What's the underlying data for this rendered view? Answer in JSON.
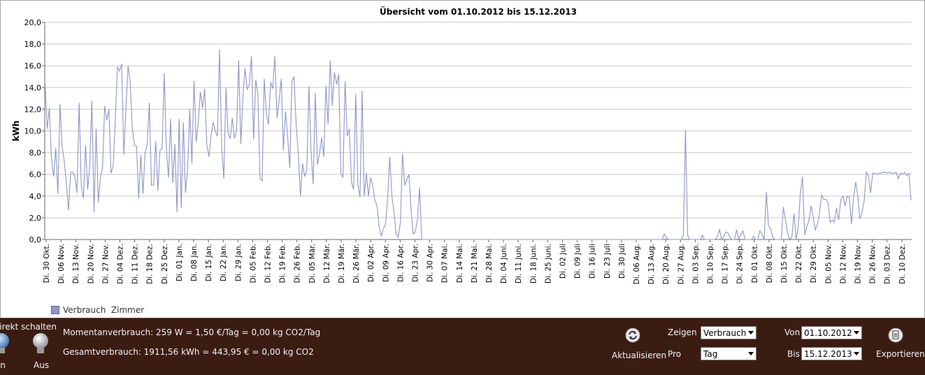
{
  "chart_data": {
    "type": "line",
    "title": "Übersicht vom 01.10.2012 bis 15.12.2013",
    "ylabel": "kWh",
    "xlabel": "",
    "ylim": [
      0,
      20
    ],
    "yticks": [
      "0,0",
      "2,0",
      "4,0",
      "6,0",
      "8,0",
      "10,0",
      "12,0",
      "14,0",
      "16,0",
      "18,0",
      "20,0"
    ],
    "xticks": [
      "Di. 30 Okt.",
      "Di. 06 Nov.",
      "Di. 13 Nov.",
      "Di. 20 Nov.",
      "Di. 27 Nov.",
      "Di. 04 Dez.",
      "Di. 11 Dez.",
      "Di. 18 Dez.",
      "Di. 25 Dez.",
      "Di. 01 Jan.",
      "Di. 08 Jan.",
      "Di. 15 Jan.",
      "Di. 22 Jan.",
      "Di. 29 Jan.",
      "Di. 05 Feb.",
      "Di. 12 Feb.",
      "Di. 19 Feb.",
      "Di. 26 Feb.",
      "Di. 05 Mär.",
      "Di. 12 Mär.",
      "Di. 19 Mär.",
      "Di. 26 Mär.",
      "Di. 02 Apr.",
      "Di. 09 Apr.",
      "Di. 16 Apr.",
      "Di. 23 Apr.",
      "Di. 30 Apr.",
      "Di. 07 Mai.",
      "Di. 14 Mai.",
      "Di. 21 Mai.",
      "Di. 28 Mai.",
      "Di. 04 Juni.",
      "Di. 11 Juni.",
      "Di. 18 Juni.",
      "Di. 25 Juni.",
      "Di. 02 Juli",
      "Di. 09 Juli",
      "Di. 16 Juli",
      "Di. 23 Juli",
      "Di. 30 Juli",
      "Di. 06 Aug.",
      "Di. 13 Aug.",
      "Di. 20 Aug.",
      "Di. 27 Aug.",
      "Di. 03 Sep.",
      "Di. 10 Sep.",
      "Di. 17 Sep.",
      "Di. 24 Sep.",
      "Di. 01 Okt.",
      "Di. 08 Okt.",
      "Di. 15 Okt.",
      "Di. 22 Okt.",
      "Di. 29 Okt.",
      "Di. 05 Nov.",
      "Di. 12 Nov.",
      "Di. 19 Nov.",
      "Di. 26 Nov.",
      "Di. 03 Dez.",
      "Di. 10 Dez."
    ],
    "grid": true,
    "legend_position": "bottom-left",
    "series": [
      {
        "name": "Verbrauch  Zimmer",
        "color": "#8f97c4",
        "x_start": "2012-10-26",
        "values": [
          14.3,
          10.2,
          12.1,
          7.5,
          5.8,
          8.4,
          4.2,
          12.5,
          8.6,
          7.2,
          5.2,
          2.7,
          6.2,
          6.2,
          5.8,
          4.3,
          12.6,
          5.0,
          3.8,
          8.7,
          4.6,
          6.8,
          12.8,
          2.5,
          10.2,
          3.4,
          5.7,
          6.6,
          12.3,
          11.0,
          12.0,
          6.1,
          6.8,
          11.0,
          15.9,
          15.5,
          16.2,
          7.8,
          12.1,
          16.0,
          14.5,
          10.2,
          8.7,
          8.6,
          3.8,
          7.8,
          4.2,
          8.0,
          8.7,
          12.6,
          5.0,
          5.0,
          9.1,
          4.5,
          8.2,
          8.4,
          15.3,
          8.2,
          5.7,
          11.1,
          5.2,
          8.8,
          2.5,
          11.1,
          2.9,
          10.8,
          4.3,
          6.5,
          12.0,
          7.0,
          14.6,
          9.0,
          10.8,
          13.6,
          12.1,
          13.9,
          8.8,
          7.6,
          9.6,
          10.8,
          10.0,
          9.5,
          17.5,
          8.5,
          5.6,
          14.0,
          9.8,
          9.3,
          11.2,
          9.3,
          10.1,
          16.5,
          8.8,
          13.2,
          15.8,
          13.8,
          14.3,
          16.9,
          9.2,
          14.7,
          13.5,
          5.6,
          5.4,
          14.8,
          11.6,
          10.6,
          14.5,
          13.9,
          16.9,
          11.2,
          12.8,
          14.8,
          8.2,
          11.8,
          9.5,
          6.6,
          14.6,
          15.0,
          10.5,
          8.0,
          4.0,
          7.0,
          5.8,
          6.4,
          14.1,
          8.1,
          5.1,
          13.5,
          6.9,
          7.9,
          9.4,
          7.6,
          14.2,
          10.6,
          16.5,
          12.3,
          15.4,
          14.3,
          15.2,
          6.1,
          5.7,
          14.6,
          9.5,
          10.2,
          5.3,
          4.6,
          13.4,
          5.1,
          3.9,
          13.7,
          4.0,
          6.1,
          4.0,
          5.7,
          5.0,
          3.6,
          3.1,
          1.2,
          0.3,
          1.0,
          1.4,
          3.8,
          7.6,
          4.0,
          2.5,
          0.5,
          0.2,
          1.6,
          7.9,
          5.0,
          5.5,
          6.0,
          2.8,
          0.5,
          0.7,
          1.8,
          4.8,
          0,
          0,
          0,
          0,
          0,
          0,
          0,
          0,
          0,
          0,
          0,
          0,
          0,
          0,
          0,
          0,
          0,
          0,
          0,
          0,
          0,
          0,
          0,
          0,
          0,
          0,
          0,
          0,
          0,
          0,
          0,
          0,
          0,
          0,
          0,
          0,
          0,
          0,
          0,
          0,
          0,
          0,
          0,
          0,
          0,
          0,
          0,
          0,
          0,
          0,
          0,
          0,
          0,
          0,
          0,
          0,
          0,
          0,
          0,
          0,
          0,
          0,
          0,
          0,
          0,
          0,
          0,
          0,
          0,
          0,
          0,
          0,
          0,
          0,
          0,
          0,
          0,
          0,
          0,
          0,
          0,
          0,
          0,
          0,
          0,
          0,
          0,
          0,
          0,
          0,
          0,
          0,
          0,
          0,
          0,
          0,
          0,
          0,
          0,
          0,
          0,
          0,
          0,
          0,
          0,
          0,
          0,
          0,
          0,
          0,
          0,
          0,
          0,
          0,
          0.5,
          0.2,
          0,
          0,
          0,
          0,
          0,
          0,
          0,
          0.4,
          10.1,
          0.4,
          0,
          0,
          0,
          0,
          0,
          0,
          0.4,
          0,
          0,
          0,
          0,
          0,
          0,
          0.3,
          0.9,
          0,
          0.3,
          0.7,
          0.6,
          0.2,
          0,
          0,
          0.9,
          0,
          0.5,
          0.8,
          0,
          0,
          0,
          0,
          0.3,
          0,
          0,
          0.8,
          0.5,
          0,
          4.4,
          1.3,
          1.0,
          0.2,
          0,
          0,
          0,
          0,
          3.0,
          1.8,
          0.6,
          0,
          0.2,
          2.4,
          0,
          1.2,
          4.3,
          5.8,
          0.4,
          1.2,
          1.7,
          3.1,
          2.1,
          0.9,
          1.4,
          2.4,
          4.1,
          3.7,
          3.7,
          3.4,
          1.6,
          1.8,
          1.6,
          2.9,
          1.8,
          3.7,
          4.0,
          3.1,
          4.0,
          3.9,
          1.4,
          3.9,
          5.3,
          4.0,
          1.9,
          2.5,
          3.6,
          6.2,
          5.9,
          4.3,
          6.1,
          6.1,
          6.0,
          6.1,
          6.1,
          6.2,
          6.2,
          6.1,
          6.2,
          6.1,
          6.1,
          6.2,
          5.6,
          6.1,
          6.0,
          6.2,
          5.9,
          6.1,
          3.6
        ]
      }
    ]
  },
  "toolbar": {
    "direct_switch_label": "Direkt schalten",
    "on_label": "An",
    "off_label": "Aus",
    "current_consumption": "Momentanverbrauch: 259 W = 1,50 €/Tag = 0,00 kg CO2/Tag",
    "total_consumption": "Gesamtverbrauch: 1911,56 kWh = 443,95 € = 0,00 kg CO2",
    "refresh_label": "Aktualisieren",
    "show_label": "Zeigen",
    "show_value": "Verbrauch",
    "per_label": "Pro",
    "per_value": "Tag",
    "from_label": "Von",
    "from_value": "01.10.2012",
    "to_label": "Bis",
    "to_value": "15.12.2013",
    "export_label": "Exportieren"
  }
}
